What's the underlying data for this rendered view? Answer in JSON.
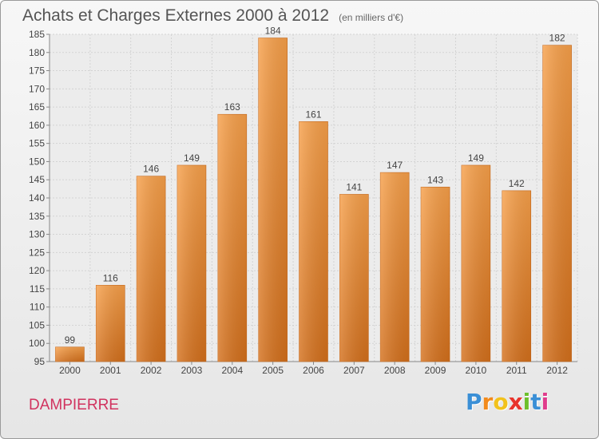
{
  "chart_data": {
    "type": "bar",
    "title": "Achats et Charges Externes 2000 à 2012",
    "unit": "(en milliers d'€)",
    "categories": [
      "2000",
      "2001",
      "2002",
      "2003",
      "2004",
      "2005",
      "2006",
      "2007",
      "2008",
      "2009",
      "2010",
      "2011",
      "2012"
    ],
    "values": [
      99,
      116,
      146,
      149,
      163,
      184,
      161,
      141,
      147,
      143,
      149,
      142,
      182
    ],
    "ylim": [
      95,
      185
    ],
    "yticks": [
      95,
      100,
      105,
      110,
      115,
      120,
      125,
      130,
      135,
      140,
      145,
      150,
      155,
      160,
      165,
      170,
      175,
      180,
      185
    ],
    "grid": true,
    "bar_color_top": "#f7a04a",
    "bar_color_bottom": "#d4701c"
  },
  "footer": {
    "city": "DAMPIERRE",
    "logo_letters": [
      "P",
      "r",
      "o",
      "x",
      "i",
      "t",
      "i"
    ],
    "logo_colors": [
      "#3a8fd6",
      "#f28a1c",
      "#f2c21c",
      "#e8342c",
      "#6cbf2a",
      "#3a8fd6",
      "#e03c8c"
    ]
  }
}
